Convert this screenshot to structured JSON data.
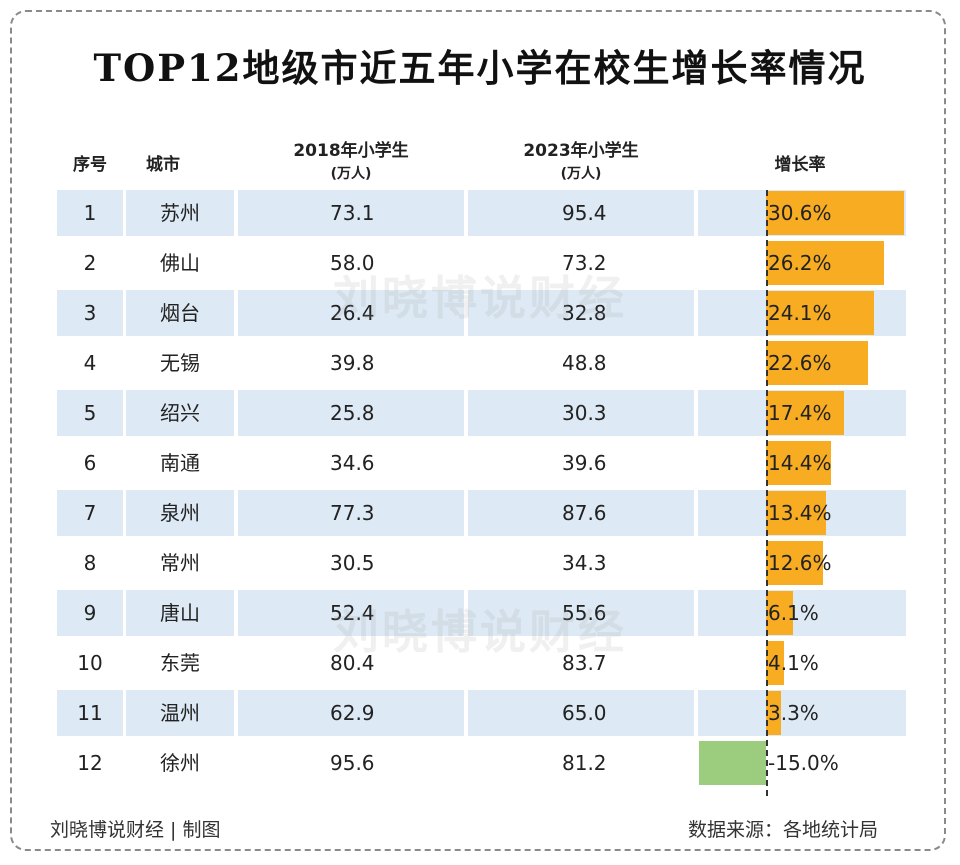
{
  "title": "TOP12地级市近五年小学在校生增长率情况",
  "headers": {
    "index": "序号",
    "city": "城市",
    "y2018": "2018年小学生",
    "y2018_unit": "(万人)",
    "y2023": "2023年小学生",
    "y2023_unit": "(万人)",
    "growth": "增长率"
  },
  "watermark": "刘晓博说财经",
  "footer": {
    "credit": "刘晓博说财经 | 制图",
    "source": "数据来源：各地统计局"
  },
  "colors": {
    "positive_bar": "#f7ac22",
    "negative_bar": "#9ccc7d",
    "row_stripe": "#dde9f4"
  },
  "rows": [
    {
      "idx": "1",
      "city": "苏州",
      "v2018": "73.1",
      "v2023": "95.4",
      "growth": "30.6%"
    },
    {
      "idx": "2",
      "city": "佛山",
      "v2018": "58.0",
      "v2023": "73.2",
      "growth": "26.2%"
    },
    {
      "idx": "3",
      "city": "烟台",
      "v2018": "26.4",
      "v2023": "32.8",
      "growth": "24.1%"
    },
    {
      "idx": "4",
      "city": "无锡",
      "v2018": "39.8",
      "v2023": "48.8",
      "growth": "22.6%"
    },
    {
      "idx": "5",
      "city": "绍兴",
      "v2018": "25.8",
      "v2023": "30.3",
      "growth": "17.4%"
    },
    {
      "idx": "6",
      "city": "南通",
      "v2018": "34.6",
      "v2023": "39.6",
      "growth": "14.4%"
    },
    {
      "idx": "7",
      "city": "泉州",
      "v2018": "77.3",
      "v2023": "87.6",
      "growth": "13.4%"
    },
    {
      "idx": "8",
      "city": "常州",
      "v2018": "30.5",
      "v2023": "34.3",
      "growth": "12.6%"
    },
    {
      "idx": "9",
      "city": "唐山",
      "v2018": "52.4",
      "v2023": "55.6",
      "growth": "6.1%"
    },
    {
      "idx": "10",
      "city": "东莞",
      "v2018": "80.4",
      "v2023": "83.7",
      "growth": "4.1%"
    },
    {
      "idx": "11",
      "city": "温州",
      "v2018": "62.9",
      "v2023": "65.0",
      "growth": "3.3%"
    },
    {
      "idx": "12",
      "city": "徐州",
      "v2018": "95.6",
      "v2023": "81.2",
      "growth": "-15.0%"
    }
  ],
  "chart_data": {
    "type": "bar",
    "categories": [
      "苏州",
      "佛山",
      "烟台",
      "无锡",
      "绍兴",
      "南通",
      "泉州",
      "常州",
      "唐山",
      "东莞",
      "温州",
      "徐州"
    ],
    "values": [
      30.6,
      26.2,
      24.1,
      22.6,
      17.4,
      14.4,
      13.4,
      12.6,
      6.1,
      4.1,
      3.3,
      -15.0
    ],
    "title": "TOP12地级市近五年小学在校生增长率情况"
  }
}
